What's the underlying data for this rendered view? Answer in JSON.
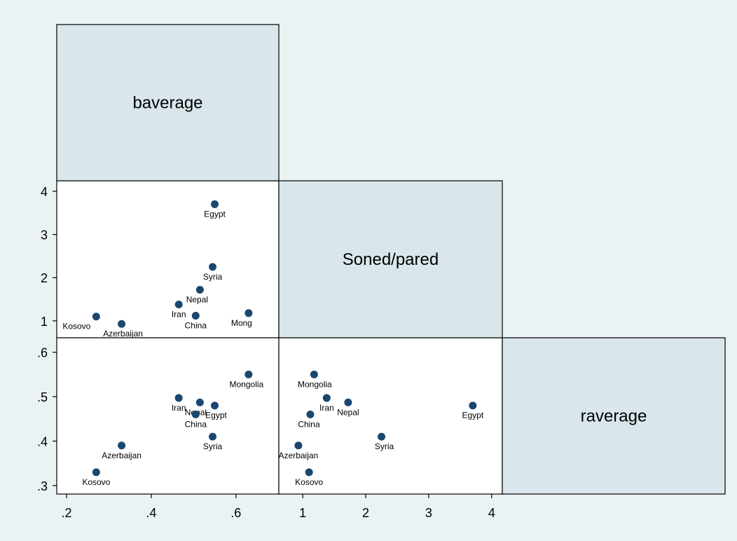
{
  "chart_data": {
    "type": "scatter",
    "title": "",
    "variables": [
      "baverage",
      "Soned/pared",
      "raverage"
    ],
    "diagonal_labels": [
      "baverage",
      "Soned/pared",
      "raverage"
    ],
    "grid": false,
    "countries": [
      {
        "name": "Egypt",
        "baverage": 0.55,
        "soned_pared": 3.7,
        "raverage": 0.48
      },
      {
        "name": "Syria",
        "baverage": 0.545,
        "soned_pared": 2.25,
        "raverage": 0.41
      },
      {
        "name": "Nepal",
        "baverage": 0.515,
        "soned_pared": 1.72,
        "raverage": 0.487
      },
      {
        "name": "Iran",
        "baverage": 0.465,
        "soned_pared": 1.38,
        "raverage": 0.497
      },
      {
        "name": "China",
        "baverage": 0.505,
        "soned_pared": 1.12,
        "raverage": 0.46
      },
      {
        "name": "Mongolia",
        "baverage": 0.63,
        "soned_pared": 1.18,
        "raverage": 0.55
      },
      {
        "name": "Kosovo",
        "baverage": 0.27,
        "soned_pared": 1.1,
        "raverage": 0.33
      },
      {
        "name": "Azerbaijan",
        "baverage": 0.33,
        "soned_pared": 0.93,
        "raverage": 0.39
      }
    ],
    "axes": {
      "baverage": {
        "range": [
          0.19,
          0.665
        ],
        "ticks": [
          ".2",
          ".4",
          ".6"
        ],
        "tick_values": [
          0.2,
          0.4,
          0.6
        ]
      },
      "soned_pared": {
        "range": [
          0.82,
          4.08
        ],
        "ticks": [
          "1",
          "2",
          "3",
          "4"
        ],
        "tick_values": [
          1,
          2,
          3,
          4
        ]
      },
      "raverage": {
        "range": [
          0.2935,
          0.6183
        ],
        "ticks": [
          ".3",
          ".4",
          ".5",
          ".6"
        ],
        "tick_values": [
          0.3,
          0.4,
          0.5,
          0.6
        ]
      }
    },
    "panels": [
      {
        "x": "baverage",
        "y": "soned_pared",
        "labels": {
          "Egypt": "Egypt",
          "Syria": "Syria",
          "Nepal": "Nepal",
          "Iran": "Iran",
          "China": "China",
          "Mongolia": "Mong",
          "Kosovo": "Kosovo",
          "Azerbaijan": "Azerbaijan"
        }
      },
      {
        "x": "baverage",
        "y": "raverage",
        "labels": {
          "Egypt": "Egypt",
          "Syria": "Syria",
          "Nepal": "Nepal",
          "Iran": "Iran",
          "China": "China",
          "Mongolia": "Mongolia",
          "Kosovo": "Kosovo",
          "Azerbaijan": "Azerbaijan"
        }
      },
      {
        "x": "soned_pared",
        "y": "raverage",
        "labels": {
          "Egypt": "Egypt",
          "Syria": "Syria",
          "Nepal": "Nepal",
          "Iran": "Iran",
          "China": "China",
          "Mongolia": "Mongolia",
          "Kosovo": "Kosovo",
          "Azerbaijan": "Azerbaijan"
        }
      }
    ],
    "colors": {
      "marker": "#1a476f",
      "diagonal_fill": "#d9e6eb",
      "background": "#eaf2f3",
      "panel": "#ffffff"
    }
  }
}
